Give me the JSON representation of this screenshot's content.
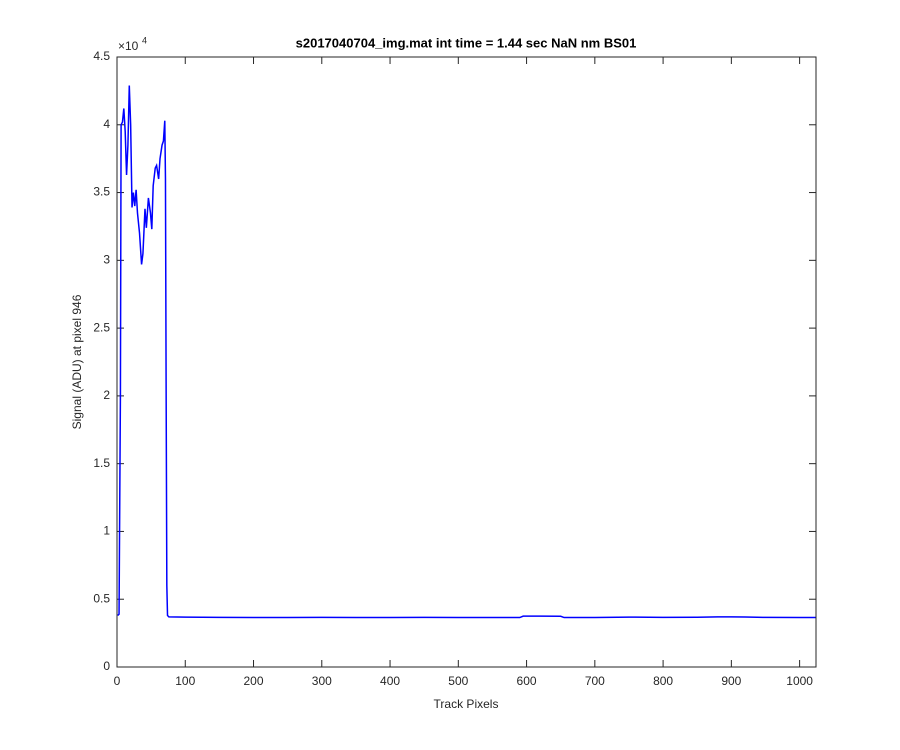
{
  "chart_data": {
    "type": "line",
    "title": "s2017040704_img.mat int time = 1.44 sec  NaN nm BS01",
    "x_label": "Track Pixels",
    "y_label": "Signal (ADU) at pixel 946",
    "y_multiplier": {
      "base": "×10",
      "exponent": "4"
    },
    "x": [
      1,
      3,
      5,
      6,
      8,
      10,
      12,
      14,
      16,
      18,
      20,
      22,
      24,
      26,
      28,
      30,
      33,
      36,
      38,
      41,
      43,
      46,
      49,
      51,
      53,
      56,
      58,
      61,
      63,
      66,
      68,
      70,
      71,
      72,
      73,
      74,
      76,
      100,
      150,
      200,
      250,
      300,
      350,
      400,
      450,
      500,
      550,
      590,
      595,
      620,
      650,
      655,
      700,
      750,
      800,
      850,
      880,
      900,
      920,
      950,
      1000,
      1024
    ],
    "series": [
      {
        "name": "signal",
        "color": "#0000ff",
        "values": [
          3800,
          3900,
          20000,
          40000,
          40200,
          41200,
          39500,
          36300,
          38500,
          42900,
          40000,
          33900,
          35000,
          34000,
          35200,
          33500,
          32000,
          29700,
          30500,
          33800,
          32400,
          34600,
          33500,
          32300,
          35500,
          36800,
          37000,
          36000,
          37500,
          38500,
          38800,
          40300,
          36000,
          20000,
          6000,
          3800,
          3700,
          3680,
          3660,
          3650,
          3650,
          3660,
          3650,
          3650,
          3660,
          3650,
          3650,
          3650,
          3750,
          3750,
          3740,
          3650,
          3650,
          3680,
          3660,
          3670,
          3700,
          3700,
          3690,
          3660,
          3650,
          3650
        ]
      }
    ],
    "xlim": [
      0,
      1024
    ],
    "ylim": [
      0,
      45000
    ],
    "xticks": [
      0,
      100,
      200,
      300,
      400,
      500,
      600,
      700,
      800,
      900,
      1000
    ],
    "yticks": [
      0,
      {
        "value": 5000,
        "label": "0.5"
      },
      {
        "value": 10000,
        "label": "1"
      },
      {
        "value": 15000,
        "label": "1.5"
      },
      {
        "value": 20000,
        "label": "2"
      },
      {
        "value": 25000,
        "label": "2.5"
      },
      {
        "value": 30000,
        "label": "3"
      },
      {
        "value": 35000,
        "label": "3.5"
      },
      {
        "value": 40000,
        "label": "4"
      },
      {
        "value": 45000,
        "label": "4.5"
      }
    ],
    "grid": false
  }
}
